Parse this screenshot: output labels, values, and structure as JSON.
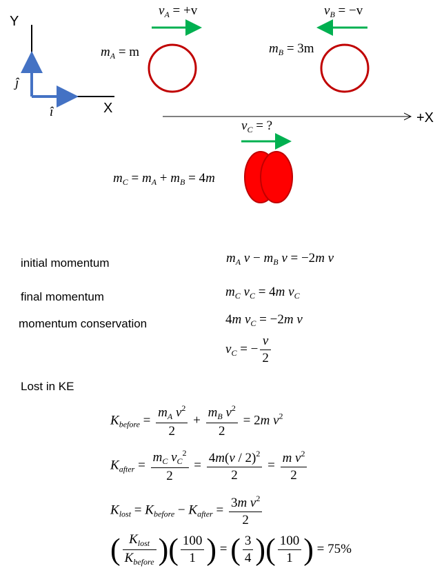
{
  "axes": {
    "y_label": "Y",
    "x_label": "X",
    "j_hat": "ĵ",
    "i_hat": "î",
    "plus_x_label": "+X"
  },
  "ball_a": {
    "velocity_label": "v",
    "velocity_sub": "A",
    "velocity_value": "= +v",
    "mass_label": "m",
    "mass_sub": "A",
    "mass_value": "= m"
  },
  "ball_b": {
    "velocity_label": "v",
    "velocity_sub": "B",
    "velocity_value": "= −v",
    "mass_label": "m",
    "mass_sub": "B",
    "mass_value": "= 3m"
  },
  "ball_c": {
    "velocity_label": "v",
    "velocity_sub": "C",
    "velocity_value": "= ?",
    "mass_equation": "= m_A + m_B = 4m"
  },
  "colors": {
    "ball_outline": "#c00000",
    "arrow_green": "#00b050",
    "axis_blue": "#4472c4",
    "blob_red": "#ff0000"
  },
  "labels": {
    "initial_momentum": "initial momentum",
    "final_momentum": "final momentum",
    "momentum_conservation": "momentum  conservation",
    "lost_in_ke": "Lost in KE"
  },
  "equations": {
    "initial_rhs": "v − m",
    "initial_end": "v = −2mv",
    "final_end": "= 4mv",
    "conservation": "= −2mv",
    "vc_result": "= −",
    "ke_result": "= 75%"
  }
}
